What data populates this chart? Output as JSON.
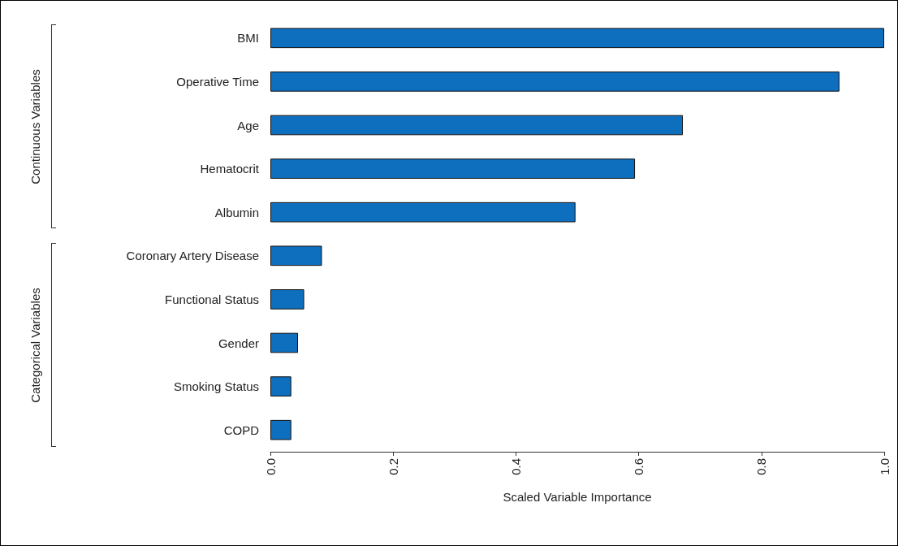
{
  "chart_data": {
    "type": "bar",
    "orientation": "horizontal",
    "xlabel": "Scaled Variable Importance",
    "categories": [
      "BMI",
      "Operative Time",
      "Age",
      "Hematocrit",
      "Albumin",
      "Coronary Artery Disease",
      "Functional Status",
      "Gender",
      "Smoking Status",
      "COPD"
    ],
    "values": [
      1.0,
      0.927,
      0.672,
      0.594,
      0.497,
      0.084,
      0.055,
      0.045,
      0.034,
      0.034
    ],
    "color": "#0e6fbe",
    "xlim": [
      0,
      1
    ],
    "xticks": [
      {
        "value": 0,
        "label": "0.0"
      },
      {
        "value": 0.2,
        "label": "0.2"
      },
      {
        "value": 0.4,
        "label": "0.4"
      },
      {
        "value": 0.6,
        "label": "0.6"
      },
      {
        "value": 0.8,
        "label": "0.8"
      },
      {
        "value": 1,
        "label": "1.0"
      }
    ],
    "annotations": [
      "Continuous Variables",
      "Categorical Variables"
    ],
    "grid": false
  }
}
